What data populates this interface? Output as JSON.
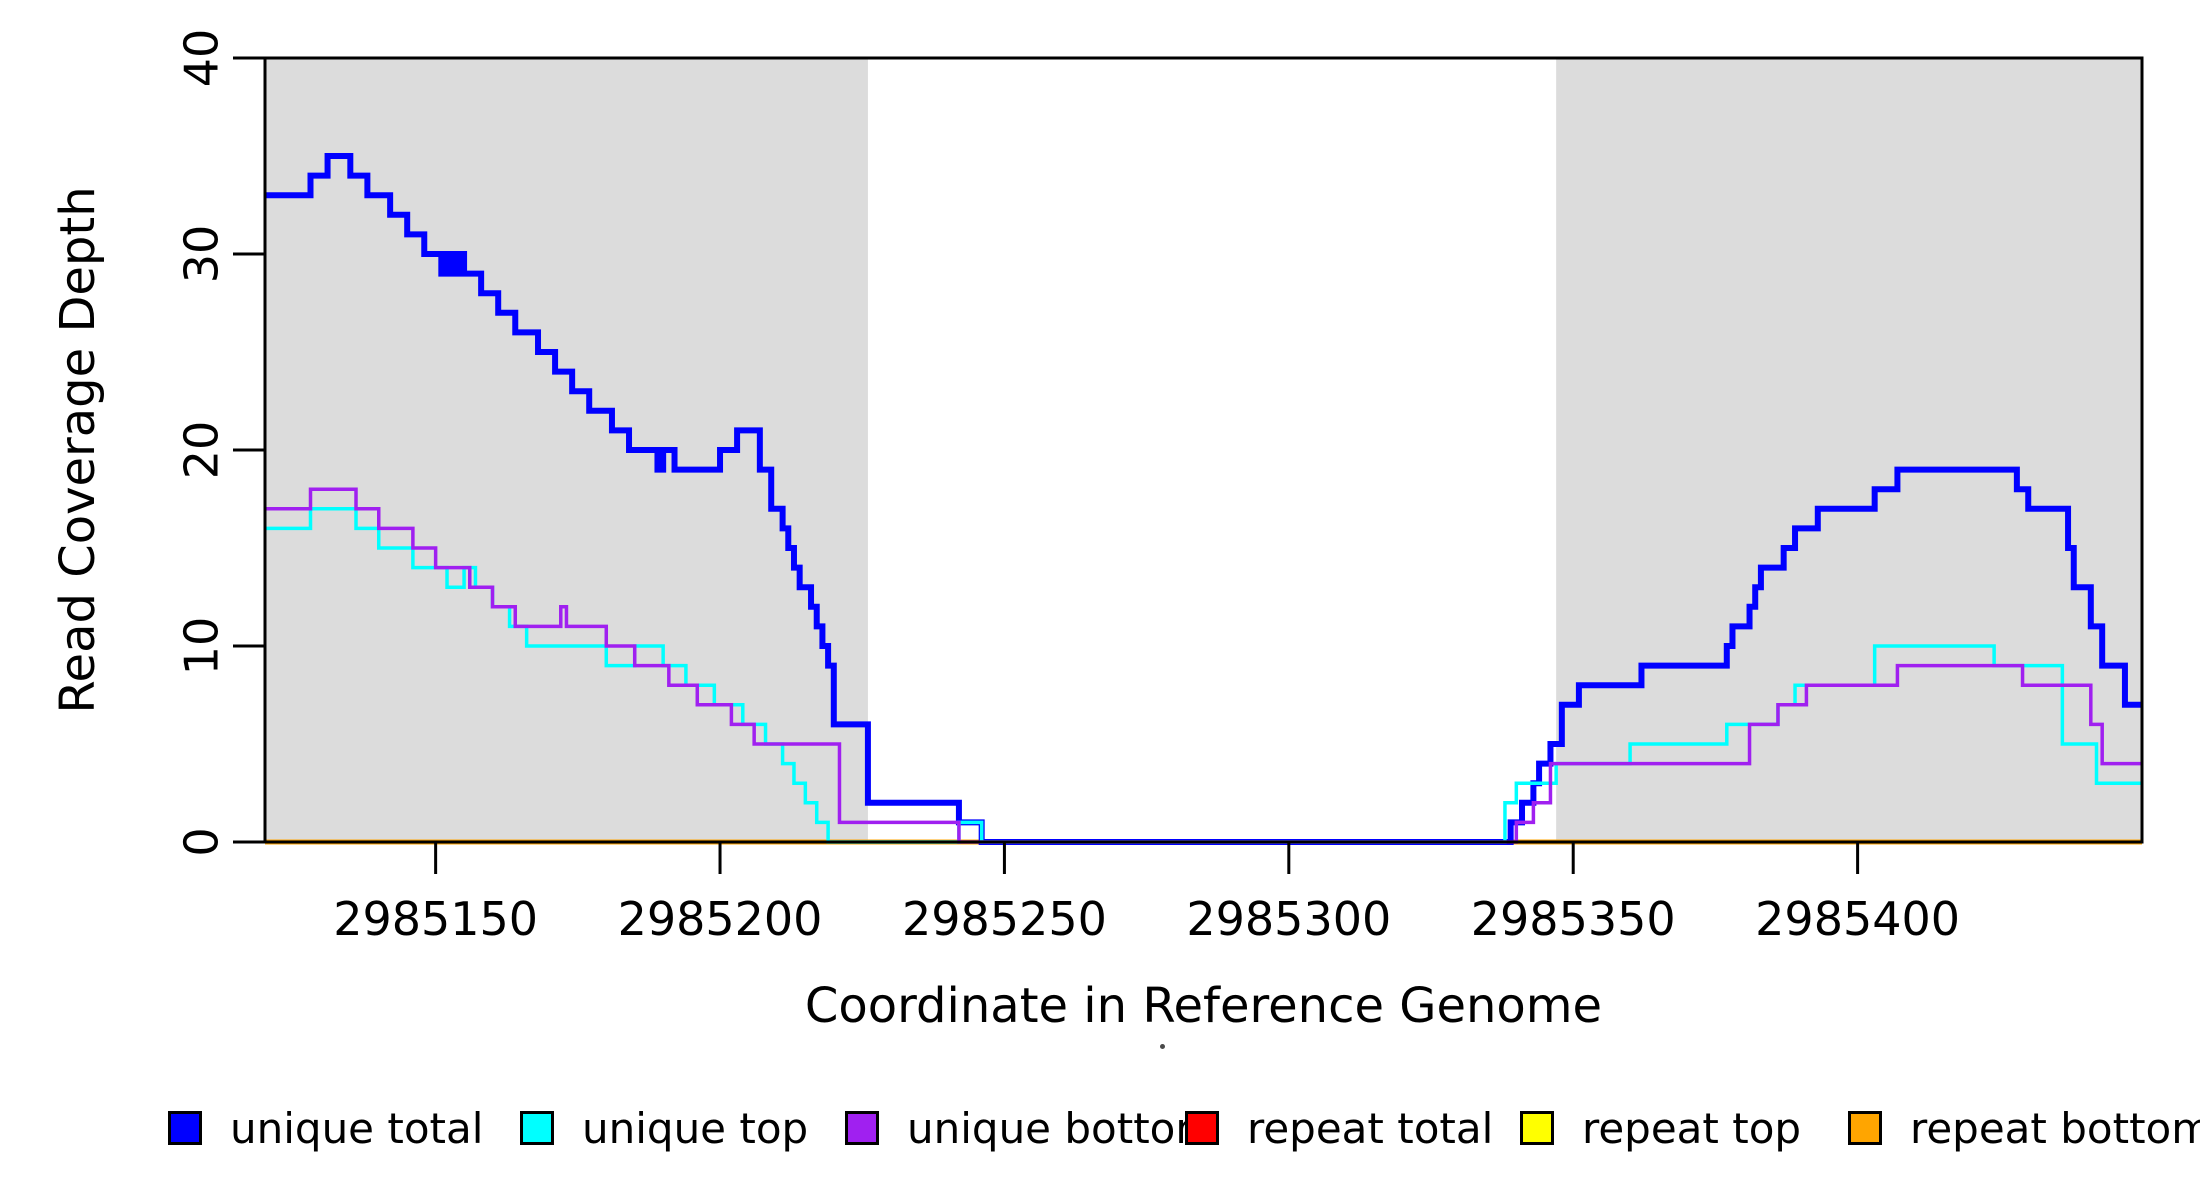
{
  "chart_data": {
    "type": "line",
    "step_mode": "after",
    "title": "",
    "xlabel": "Coordinate in Reference Genome",
    "ylabel": "Read Coverage Depth",
    "xlim": [
      2985120,
      2985450
    ],
    "ylim": [
      0,
      40
    ],
    "x_ticks": [
      2985150,
      2985200,
      2985250,
      2985300,
      2985350,
      2985400
    ],
    "y_ticks": [
      0,
      10,
      20,
      30,
      40
    ],
    "grid": false,
    "legend_position": "bottom",
    "shaded_regions": [
      {
        "name": "left-gray-band",
        "x0": 2985120,
        "x1": 2985226,
        "color": "#DCDCDC"
      },
      {
        "name": "right-gray-band",
        "x0": 2985347,
        "x1": 2985450,
        "color": "#DCDCDC"
      }
    ],
    "series": [
      {
        "name": "repeat total",
        "color": "#FF0000",
        "width": 3.5,
        "points": [
          [
            2985120,
            0
          ]
        ]
      },
      {
        "name": "repeat top",
        "color": "#FFFF00",
        "width": 3.5,
        "points": [
          [
            2985120,
            0
          ]
        ]
      },
      {
        "name": "repeat bottom",
        "color": "#FFA500",
        "width": 5,
        "points": [
          [
            2985120,
            0
          ]
        ]
      },
      {
        "name": "unique total",
        "color": "#0000FF",
        "width": 6,
        "points": [
          [
            2985120,
            33
          ],
          [
            2985128,
            34
          ],
          [
            2985131,
            35
          ],
          [
            2985135,
            34
          ],
          [
            2985138,
            33
          ],
          [
            2985142,
            32
          ],
          [
            2985145,
            31
          ],
          [
            2985148,
            30
          ],
          [
            2985151,
            29
          ],
          [
            2985152,
            30
          ],
          [
            2985153,
            29
          ],
          [
            2985154,
            30
          ],
          [
            2985155,
            29
          ],
          [
            2985158,
            28
          ],
          [
            2985161,
            27
          ],
          [
            2985164,
            26
          ],
          [
            2985168,
            25
          ],
          [
            2985171,
            24
          ],
          [
            2985174,
            23
          ],
          [
            2985177,
            22
          ],
          [
            2985181,
            21
          ],
          [
            2985184,
            20
          ],
          [
            2985189,
            19
          ],
          [
            2985190,
            20
          ],
          [
            2985192,
            19
          ],
          [
            2985200,
            20
          ],
          [
            2985203,
            21
          ],
          [
            2985207,
            19
          ],
          [
            2985209,
            17
          ],
          [
            2985211,
            16
          ],
          [
            2985212,
            15
          ],
          [
            2985213,
            14
          ],
          [
            2985214,
            13
          ],
          [
            2985216,
            12
          ],
          [
            2985217,
            11
          ],
          [
            2985218,
            10
          ],
          [
            2985219,
            9
          ],
          [
            2985220,
            6
          ],
          [
            2985226,
            2
          ],
          [
            2985242,
            1
          ],
          [
            2985246,
            0
          ],
          [
            2985339,
            1
          ],
          [
            2985341,
            2
          ],
          [
            2985343,
            3
          ],
          [
            2985344,
            4
          ],
          [
            2985346,
            5
          ],
          [
            2985348,
            7
          ],
          [
            2985351,
            8
          ],
          [
            2985362,
            9
          ],
          [
            2985377,
            10
          ],
          [
            2985378,
            11
          ],
          [
            2985381,
            12
          ],
          [
            2985382,
            13
          ],
          [
            2985383,
            14
          ],
          [
            2985387,
            15
          ],
          [
            2985389,
            16
          ],
          [
            2985393,
            17
          ],
          [
            2985403,
            18
          ],
          [
            2985407,
            19
          ],
          [
            2985428,
            18
          ],
          [
            2985430,
            17
          ],
          [
            2985437,
            15
          ],
          [
            2985438,
            13
          ],
          [
            2985441,
            11
          ],
          [
            2985443,
            9
          ],
          [
            2985447,
            7
          ]
        ]
      },
      {
        "name": "unique top",
        "color": "#00FFFF",
        "width": 3.5,
        "points": [
          [
            2985120,
            16
          ],
          [
            2985128,
            17
          ],
          [
            2985136,
            16
          ],
          [
            2985140,
            15
          ],
          [
            2985146,
            14
          ],
          [
            2985152,
            13
          ],
          [
            2985155,
            14
          ],
          [
            2985157,
            13
          ],
          [
            2985160,
            12
          ],
          [
            2985163,
            11
          ],
          [
            2985166,
            10
          ],
          [
            2985180,
            9
          ],
          [
            2985185,
            10
          ],
          [
            2985190,
            9
          ],
          [
            2985194,
            8
          ],
          [
            2985199,
            7
          ],
          [
            2985204,
            6
          ],
          [
            2985208,
            5
          ],
          [
            2985211,
            4
          ],
          [
            2985213,
            3
          ],
          [
            2985215,
            2
          ],
          [
            2985217,
            1
          ],
          [
            2985219,
            0
          ],
          [
            2985242,
            1
          ],
          [
            2985246,
            0
          ],
          [
            2985338,
            2
          ],
          [
            2985340,
            3
          ],
          [
            2985347,
            4
          ],
          [
            2985360,
            5
          ],
          [
            2985377,
            6
          ],
          [
            2985386,
            7
          ],
          [
            2985389,
            8
          ],
          [
            2985403,
            10
          ],
          [
            2985424,
            9
          ],
          [
            2985436,
            5
          ],
          [
            2985442,
            3
          ]
        ]
      },
      {
        "name": "unique bottom",
        "color": "#A020F0",
        "width": 3.5,
        "points": [
          [
            2985120,
            17
          ],
          [
            2985128,
            18
          ],
          [
            2985136,
            17
          ],
          [
            2985140,
            16
          ],
          [
            2985146,
            15
          ],
          [
            2985150,
            14
          ],
          [
            2985156,
            13
          ],
          [
            2985160,
            12
          ],
          [
            2985164,
            11
          ],
          [
            2985172,
            12
          ],
          [
            2985173,
            11
          ],
          [
            2985180,
            10
          ],
          [
            2985185,
            9
          ],
          [
            2985191,
            8
          ],
          [
            2985196,
            7
          ],
          [
            2985202,
            6
          ],
          [
            2985206,
            5
          ],
          [
            2985221,
            1
          ],
          [
            2985242,
            0
          ],
          [
            2985340,
            1
          ],
          [
            2985343,
            2
          ],
          [
            2985346,
            4
          ],
          [
            2985381,
            6
          ],
          [
            2985386,
            7
          ],
          [
            2985391,
            8
          ],
          [
            2985407,
            9
          ],
          [
            2985429,
            8
          ],
          [
            2985441,
            6
          ],
          [
            2985443,
            4
          ]
        ]
      }
    ],
    "legend": {
      "entries": [
        {
          "label": "unique total",
          "color": "#0000FF"
        },
        {
          "label": "unique top",
          "color": "#00FFFF"
        },
        {
          "label": "unique bottom",
          "color": "#A020F0"
        },
        {
          "label": "repeat total",
          "color": "#FF0000"
        },
        {
          "label": "repeat top",
          "color": "#FFFF00"
        },
        {
          "label": "repeat bottom",
          "color": "#FFA500"
        }
      ]
    }
  }
}
